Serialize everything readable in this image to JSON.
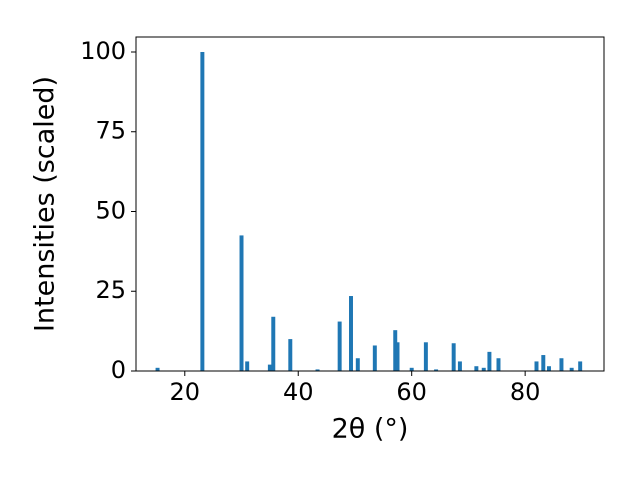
{
  "chart_data": {
    "type": "bar",
    "x_label": "2θ (°)",
    "y_label": "Intensities (scaled)",
    "x": [
      15.2,
      23.1,
      30.0,
      31.0,
      35.0,
      35.6,
      38.6,
      43.4,
      47.3,
      49.3,
      50.5,
      53.5,
      57.1,
      57.5,
      60.0,
      62.5,
      64.3,
      67.4,
      68.5,
      71.4,
      72.7,
      73.7,
      75.3,
      82.0,
      83.2,
      84.2,
      86.4,
      88.2,
      89.7
    ],
    "values": [
      1,
      100,
      42.5,
      3,
      2,
      17,
      10,
      0.5,
      15.5,
      23.5,
      4,
      8,
      12.8,
      9,
      1,
      9,
      0.5,
      8.7,
      3,
      1.5,
      1,
      6,
      4,
      3,
      5,
      1.5,
      4,
      1,
      3
    ],
    "color": "#1f77b4",
    "bar_width": 0.7,
    "xlim": [
      11.4,
      93.9
    ],
    "xticks": [
      20,
      40,
      60,
      80
    ],
    "ylim": [
      0,
      104.7
    ],
    "yticks": [
      0,
      25,
      50,
      75,
      100
    ]
  }
}
